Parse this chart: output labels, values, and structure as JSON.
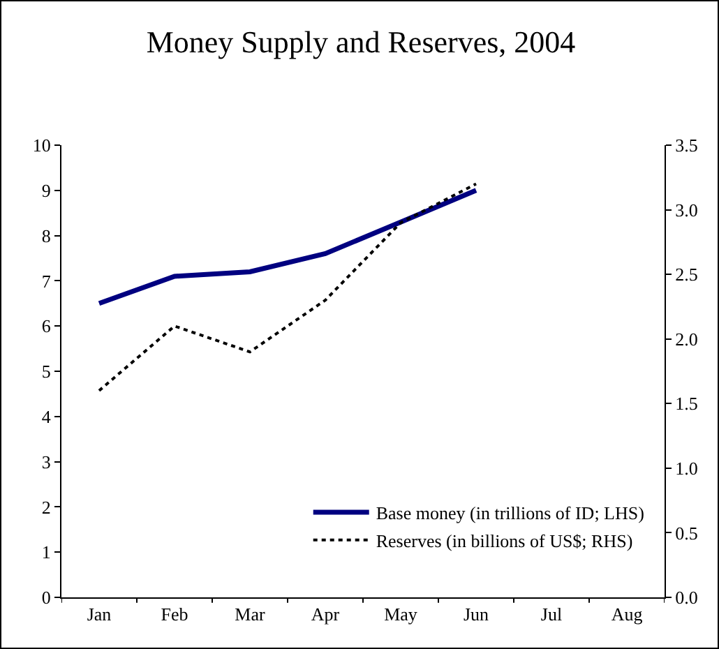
{
  "chart_data": {
    "type": "line",
    "title": "Money Supply and Reserves, 2004",
    "categories": [
      "Jan",
      "Feb",
      "Mar",
      "Apr",
      "May",
      "Jun",
      "Jul",
      "Aug"
    ],
    "series": [
      {
        "name": "Base money (in trillions of ID; LHS)",
        "color": "#000080",
        "line_style": "solid",
        "values": [
          6.5,
          7.1,
          7.2,
          7.6,
          8.3,
          9.0,
          null,
          null
        ]
      },
      {
        "name": "Reserves (in billions of US$; RHS)",
        "color": "#000000",
        "line_style": "dotted",
        "axis": "y2",
        "values": [
          1.6,
          2.1,
          1.9,
          2.3,
          2.9,
          3.2,
          null,
          null
        ]
      }
    ],
    "ylim": [
      0,
      10
    ],
    "yticks": [
      0,
      1,
      2,
      3,
      4,
      5,
      6,
      7,
      8,
      9,
      10
    ],
    "y2lim": [
      0,
      3.5
    ],
    "y2ticks": [
      {
        "value": 0,
        "label": "0.0"
      },
      {
        "value": 0.5,
        "label": "0.5"
      },
      {
        "value": 1,
        "label": "1.0"
      },
      {
        "value": 1.5,
        "label": "1.5"
      },
      {
        "value": 2,
        "label": "2.0"
      },
      {
        "value": 2.5,
        "label": "2.5"
      },
      {
        "value": 3,
        "label": "3.0"
      },
      {
        "value": 3.5,
        "label": "3.5"
      }
    ],
    "grid": false,
    "legend": "bottom right",
    "marker": "none"
  }
}
